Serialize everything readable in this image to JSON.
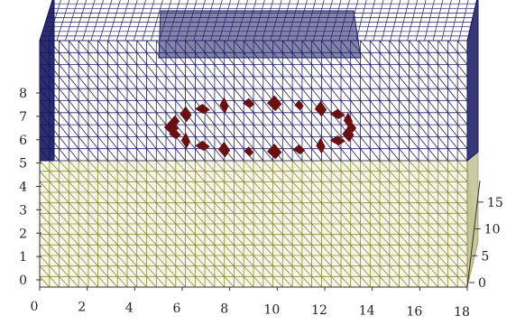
{
  "chart_data": {
    "type": "3d-mesh",
    "title": "",
    "xlabel": "",
    "ylabel": "",
    "zlabel": "",
    "x_ticks": [
      "0",
      "2",
      "4",
      "6",
      "8",
      "10",
      "12",
      "14",
      "16",
      "18"
    ],
    "z_ticks": [
      "0",
      "1",
      "2",
      "3",
      "4",
      "5",
      "6",
      "7",
      "8"
    ],
    "y_ticks": [
      "0",
      "5",
      "10",
      "15"
    ],
    "xlim": [
      0,
      18
    ],
    "ylim": [
      0,
      18
    ],
    "zlim": [
      0,
      8
    ],
    "grid": false,
    "legend": "none",
    "regions": [
      {
        "kind": "lower-layer-mesh",
        "z_range": [
          0,
          4
        ]
      },
      {
        "kind": "upper-layer-mesh",
        "z_range": [
          4,
          9
        ]
      },
      {
        "kind": "ring-inclusion",
        "center_x": 9.5,
        "center_y": 9,
        "z": 6.4
      }
    ]
  },
  "colors": {
    "upper_mesh": "#1f1f66",
    "upper_side": "#151560",
    "lower_mesh": "#8a8a3a",
    "lower_fill": "#e6e6b8",
    "ring": "#6a1010",
    "axis": "#333333"
  }
}
